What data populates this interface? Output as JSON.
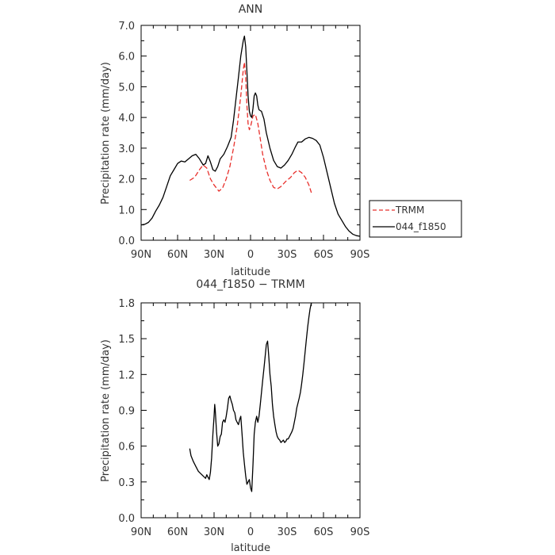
{
  "chart_data": [
    {
      "type": "line",
      "title": "ANN",
      "xlabel": "latitude",
      "ylabel": "Precipitation rate (mm/day)",
      "xlim": [
        90,
        -90
      ],
      "ylim": [
        0,
        7
      ],
      "xticks": [
        90,
        60,
        30,
        0,
        -30,
        -60,
        -90
      ],
      "xtick_labels": [
        "90N",
        "60N",
        "30N",
        "0",
        "30S",
        "60S",
        "90S"
      ],
      "yticks": [
        0,
        1,
        2,
        3,
        4,
        5,
        6,
        7
      ],
      "ytick_labels": [
        "0.0",
        "1.0",
        "2.0",
        "3.0",
        "4.0",
        "5.0",
        "6.0",
        "7.0"
      ],
      "legend": {
        "placement": "outside-right",
        "entries": [
          "TRMM",
          "044_f1850"
        ]
      },
      "series": [
        {
          "name": "TRMM",
          "color": "#e8302c",
          "dashed": true,
          "points": [
            [
              50,
              1.95
            ],
            [
              46,
              2.05
            ],
            [
              42,
              2.3
            ],
            [
              39,
              2.45
            ],
            [
              36,
              2.35
            ],
            [
              33,
              2.0
            ],
            [
              30,
              1.8
            ],
            [
              26,
              1.6
            ],
            [
              23,
              1.7
            ],
            [
              20,
              2.0
            ],
            [
              17,
              2.4
            ],
            [
              14,
              3.0
            ],
            [
              11,
              3.7
            ],
            [
              8,
              4.7
            ],
            [
              6,
              5.55
            ],
            [
              5,
              5.8
            ],
            [
              4,
              5.3
            ],
            [
              3,
              4.4
            ],
            [
              2,
              3.8
            ],
            [
              1,
              3.6
            ],
            [
              0,
              3.7
            ],
            [
              -2,
              4.05
            ],
            [
              -4,
              4.1
            ],
            [
              -6,
              3.8
            ],
            [
              -8,
              3.3
            ],
            [
              -10,
              2.8
            ],
            [
              -13,
              2.3
            ],
            [
              -16,
              1.95
            ],
            [
              -19,
              1.72
            ],
            [
              -22,
              1.67
            ],
            [
              -25,
              1.75
            ],
            [
              -29,
              1.92
            ],
            [
              -33,
              2.05
            ],
            [
              -36,
              2.2
            ],
            [
              -39,
              2.28
            ],
            [
              -42,
              2.2
            ],
            [
              -45,
              2.05
            ],
            [
              -48,
              1.8
            ],
            [
              -50,
              1.55
            ]
          ]
        },
        {
          "name": "044_f1850",
          "color": "#000000",
          "dashed": false,
          "points": [
            [
              90,
              0.5
            ],
            [
              87,
              0.52
            ],
            [
              84,
              0.58
            ],
            [
              81,
              0.72
            ],
            [
              78,
              0.95
            ],
            [
              75,
              1.15
            ],
            [
              72,
              1.4
            ],
            [
              69,
              1.75
            ],
            [
              66,
              2.1
            ],
            [
              63,
              2.3
            ],
            [
              60,
              2.5
            ],
            [
              57,
              2.58
            ],
            [
              54,
              2.55
            ],
            [
              51,
              2.65
            ],
            [
              48,
              2.75
            ],
            [
              45,
              2.8
            ],
            [
              42,
              2.65
            ],
            [
              39,
              2.45
            ],
            [
              37,
              2.5
            ],
            [
              35,
              2.75
            ],
            [
              33,
              2.55
            ],
            [
              31,
              2.3
            ],
            [
              29,
              2.25
            ],
            [
              27,
              2.4
            ],
            [
              25,
              2.65
            ],
            [
              22,
              2.8
            ],
            [
              19,
              3.05
            ],
            [
              16,
              3.35
            ],
            [
              14,
              3.9
            ],
            [
              12,
              4.6
            ],
            [
              10,
              5.3
            ],
            [
              8,
              6.0
            ],
            [
              6,
              6.5
            ],
            [
              5,
              6.65
            ],
            [
              4,
              6.3
            ],
            [
              3,
              5.5
            ],
            [
              2,
              4.7
            ],
            [
              1,
              4.2
            ],
            [
              0,
              4.05
            ],
            [
              -1,
              4.0
            ],
            [
              -2,
              4.3
            ],
            [
              -3,
              4.7
            ],
            [
              -4,
              4.8
            ],
            [
              -5,
              4.7
            ],
            [
              -6,
              4.4
            ],
            [
              -7,
              4.25
            ],
            [
              -9,
              4.2
            ],
            [
              -11,
              3.95
            ],
            [
              -13,
              3.5
            ],
            [
              -16,
              3.0
            ],
            [
              -19,
              2.6
            ],
            [
              -22,
              2.4
            ],
            [
              -25,
              2.35
            ],
            [
              -28,
              2.45
            ],
            [
              -31,
              2.6
            ],
            [
              -34,
              2.8
            ],
            [
              -37,
              3.05
            ],
            [
              -39,
              3.2
            ],
            [
              -42,
              3.2
            ],
            [
              -45,
              3.3
            ],
            [
              -48,
              3.35
            ],
            [
              -51,
              3.32
            ],
            [
              -54,
              3.25
            ],
            [
              -57,
              3.1
            ],
            [
              -60,
              2.7
            ],
            [
              -63,
              2.2
            ],
            [
              -66,
              1.7
            ],
            [
              -69,
              1.2
            ],
            [
              -72,
              0.85
            ],
            [
              -75,
              0.65
            ],
            [
              -78,
              0.45
            ],
            [
              -81,
              0.3
            ],
            [
              -84,
              0.2
            ],
            [
              -87,
              0.15
            ],
            [
              -90,
              0.13
            ]
          ]
        }
      ]
    },
    {
      "type": "line",
      "title": "044_f1850 − TRMM",
      "xlabel": "latitude",
      "ylabel": "Precipitation rate (mm/day)",
      "xlim": [
        90,
        -90
      ],
      "ylim": [
        0,
        1.8
      ],
      "xticks": [
        90,
        60,
        30,
        0,
        -30,
        -60,
        -90
      ],
      "xtick_labels": [
        "90N",
        "60N",
        "30N",
        "0",
        "30S",
        "60S",
        "90S"
      ],
      "yticks": [
        0,
        0.3,
        0.6,
        0.9,
        1.2,
        1.5,
        1.8
      ],
      "ytick_labels": [
        "0.0",
        "0.3",
        "0.6",
        "0.9",
        "1.2",
        "1.5",
        "1.8"
      ],
      "series": [
        {
          "color": "#000000",
          "dashed": false,
          "points": [
            [
              50,
              0.58
            ],
            [
              49,
              0.52
            ],
            [
              47,
              0.47
            ],
            [
              45,
              0.43
            ],
            [
              43,
              0.39
            ],
            [
              41,
              0.37
            ],
            [
              39,
              0.35
            ],
            [
              37,
              0.33
            ],
            [
              36,
              0.36
            ],
            [
              35,
              0.34
            ],
            [
              34,
              0.32
            ],
            [
              33,
              0.38
            ],
            [
              32,
              0.5
            ],
            [
              31,
              0.7
            ],
            [
              30,
              0.85
            ],
            [
              29.5,
              0.95
            ],
            [
              29,
              0.9
            ],
            [
              28,
              0.72
            ],
            [
              27,
              0.6
            ],
            [
              26,
              0.62
            ],
            [
              25,
              0.68
            ],
            [
              24,
              0.7
            ],
            [
              23,
              0.8
            ],
            [
              22,
              0.82
            ],
            [
              21,
              0.8
            ],
            [
              20,
              0.85
            ],
            [
              19,
              0.92
            ],
            [
              18,
              1.0
            ],
            [
              17,
              1.02
            ],
            [
              16,
              0.98
            ],
            [
              15,
              0.95
            ],
            [
              14,
              0.9
            ],
            [
              13,
              0.88
            ],
            [
              12,
              0.82
            ],
            [
              11,
              0.8
            ],
            [
              10,
              0.78
            ],
            [
              9,
              0.82
            ],
            [
              8,
              0.85
            ],
            [
              7,
              0.7
            ],
            [
              6,
              0.55
            ],
            [
              5,
              0.45
            ],
            [
              4,
              0.35
            ],
            [
              3,
              0.28
            ],
            [
              2,
              0.3
            ],
            [
              1,
              0.32
            ],
            [
              0,
              0.25
            ],
            [
              -1,
              0.22
            ],
            [
              -2,
              0.45
            ],
            [
              -3,
              0.7
            ],
            [
              -4,
              0.8
            ],
            [
              -5,
              0.85
            ],
            [
              -6,
              0.8
            ],
            [
              -7,
              0.85
            ],
            [
              -8,
              0.95
            ],
            [
              -9,
              1.05
            ],
            [
              -10,
              1.15
            ],
            [
              -11,
              1.25
            ],
            [
              -12,
              1.35
            ],
            [
              -13,
              1.45
            ],
            [
              -14,
              1.48
            ],
            [
              -15,
              1.35
            ],
            [
              -16,
              1.2
            ],
            [
              -17,
              1.1
            ],
            [
              -18,
              0.95
            ],
            [
              -19,
              0.85
            ],
            [
              -20,
              0.78
            ],
            [
              -21,
              0.72
            ],
            [
              -22,
              0.68
            ],
            [
              -23,
              0.66
            ],
            [
              -24,
              0.65
            ],
            [
              -25,
              0.63
            ],
            [
              -26,
              0.64
            ],
            [
              -27,
              0.65
            ],
            [
              -28,
              0.63
            ],
            [
              -29,
              0.64
            ],
            [
              -30,
              0.66
            ],
            [
              -31,
              0.66
            ],
            [
              -32,
              0.68
            ],
            [
              -33,
              0.7
            ],
            [
              -34,
              0.72
            ],
            [
              -35,
              0.75
            ],
            [
              -36,
              0.8
            ],
            [
              -37,
              0.85
            ],
            [
              -38,
              0.92
            ],
            [
              -39,
              0.96
            ],
            [
              -40,
              1.0
            ],
            [
              -41,
              1.05
            ],
            [
              -42,
              1.12
            ],
            [
              -43,
              1.2
            ],
            [
              -44,
              1.3
            ],
            [
              -45,
              1.4
            ],
            [
              -46,
              1.5
            ],
            [
              -47,
              1.6
            ],
            [
              -48,
              1.68
            ],
            [
              -49,
              1.75
            ],
            [
              -50,
              1.8
            ]
          ]
        }
      ]
    }
  ]
}
